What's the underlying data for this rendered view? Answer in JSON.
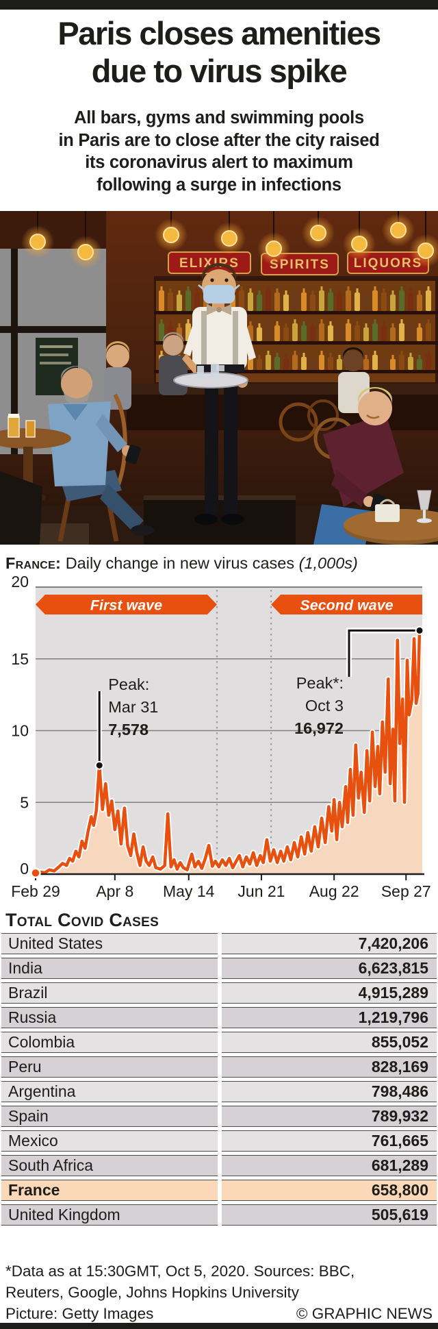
{
  "header": {
    "title_line1": "Paris closes amenities",
    "title_line2": "due to virus spike",
    "subtitle_lines": [
      "All bars, gyms and swimming pools",
      "in Paris are to close after the city raised",
      "its coronavirus alert to maximum",
      "following a surge in infections"
    ]
  },
  "photo": {
    "signs": [
      "ELIXIRS",
      "SPIRITS",
      "LIQUORS"
    ]
  },
  "chart_data": {
    "type": "area",
    "title_prefix": "France:",
    "title_main": " Daily change in new virus cases ",
    "title_note": "(1,000s)",
    "ylim": [
      0,
      20
    ],
    "y_ticks": [
      20,
      15,
      10,
      5,
      0
    ],
    "x_ticks": [
      {
        "label": "Feb 29",
        "pos": 0
      },
      {
        "label": "Apr 8",
        "pos": 20.5
      },
      {
        "label": "May 14",
        "pos": 39.6
      },
      {
        "label": "Jun 21",
        "pos": 58.4
      },
      {
        "label": "Aug 22",
        "pos": 77.2
      },
      {
        "label": "Sep 27",
        "pos": 95.8
      }
    ],
    "wave_bands": [
      {
        "label": "First wave",
        "from": 0,
        "to": 46.9,
        "left_arrow": true,
        "right_arrow": true
      },
      {
        "label": "Second wave",
        "from": 60.9,
        "to": 100,
        "left_arrow": true,
        "right_arrow": false
      }
    ],
    "dividers": [
      46.9,
      60.9
    ],
    "annotations": [
      {
        "label_lines": [
          "Peak:",
          "Mar 31",
          "7,578"
        ],
        "pos": 16.5,
        "value": 7.578,
        "style": "drop-line",
        "align": "left"
      },
      {
        "label_lines": [
          "Peak*:",
          "Oct 3",
          "16,972"
        ],
        "pos": 99.3,
        "value": 16.972,
        "style": "bracket",
        "align": "right"
      }
    ],
    "colors": {
      "line": "#e8500f",
      "fill": "#f7d8bf",
      "plot_bg": "#e0dedf",
      "grid": "#7f7f7f"
    },
    "series": [
      {
        "name": "Daily new cases (1,000s)",
        "points": [
          [
            0,
            0.08
          ],
          [
            1.2,
            0.15
          ],
          [
            2.4,
            0.1
          ],
          [
            3.6,
            0.3
          ],
          [
            4.8,
            0.22
          ],
          [
            6,
            0.5
          ],
          [
            7,
            0.75
          ],
          [
            8,
            0.6
          ],
          [
            8.8,
            1.1
          ],
          [
            9.6,
            0.9
          ],
          [
            10.4,
            1.6
          ],
          [
            11.2,
            1.2
          ],
          [
            12,
            2.3
          ],
          [
            12.8,
            1.8
          ],
          [
            13.6,
            3.0
          ],
          [
            14.4,
            4.0
          ],
          [
            15,
            3.4
          ],
          [
            15.7,
            4.4
          ],
          [
            16.5,
            7.578
          ],
          [
            17.3,
            4.5
          ],
          [
            18.1,
            6.3
          ],
          [
            18.9,
            4.1
          ],
          [
            19.7,
            5.1
          ],
          [
            20.5,
            3.1
          ],
          [
            21.3,
            4.4
          ],
          [
            22.1,
            2.1
          ],
          [
            23,
            4.6
          ],
          [
            23.8,
            2.0
          ],
          [
            24.6,
            1.3
          ],
          [
            25.4,
            2.8
          ],
          [
            26.2,
            1.5
          ],
          [
            27,
            0.6
          ],
          [
            27.8,
            1.9
          ],
          [
            28.6,
            0.9
          ],
          [
            29.4,
            0.6
          ],
          [
            30.3,
            1.2
          ],
          [
            31.1,
            0.45
          ],
          [
            32.3,
            0.35
          ],
          [
            33.4,
            0.6
          ],
          [
            34.2,
            4.2
          ],
          [
            35,
            0.5
          ],
          [
            35.8,
            1.0
          ],
          [
            36.6,
            0.35
          ],
          [
            37.4,
            0.8
          ],
          [
            38.2,
            0.45
          ],
          [
            39.2,
            0.3
          ],
          [
            40.4,
            1.4
          ],
          [
            41.2,
            0.5
          ],
          [
            42.1,
            0.9
          ],
          [
            43,
            0.4
          ],
          [
            43.9,
            1.1
          ],
          [
            44.8,
            2.0
          ],
          [
            45.7,
            0.55
          ],
          [
            46.5,
            0.9
          ],
          [
            47.4,
            0.5
          ],
          [
            48.3,
            1.0
          ],
          [
            49.2,
            0.6
          ],
          [
            50.1,
            1.1
          ],
          [
            51,
            0.45
          ],
          [
            51.9,
            0.9
          ],
          [
            52.7,
            1.3
          ],
          [
            53.6,
            0.5
          ],
          [
            54.5,
            1.2
          ],
          [
            55.4,
            0.7
          ],
          [
            56.3,
            1.5
          ],
          [
            57.2,
            0.6
          ],
          [
            58.1,
            1.3
          ],
          [
            58.9,
            0.8
          ],
          [
            59.8,
            2.4
          ],
          [
            60.7,
            0.9
          ],
          [
            61.6,
            1.7
          ],
          [
            62.5,
            0.8
          ],
          [
            63.4,
            1.6
          ],
          [
            64.2,
            0.9
          ],
          [
            65.1,
            1.9
          ],
          [
            66,
            1.0
          ],
          [
            66.9,
            2.2
          ],
          [
            67.8,
            1.2
          ],
          [
            68.7,
            2.6
          ],
          [
            69.6,
            1.4
          ],
          [
            70.4,
            2.9
          ],
          [
            71.3,
            1.6
          ],
          [
            72.2,
            3.3
          ],
          [
            73.1,
            1.9
          ],
          [
            74,
            3.9
          ],
          [
            74.9,
            2.2
          ],
          [
            75.8,
            4.7
          ],
          [
            76.6,
            3.0
          ],
          [
            77.2,
            5.2
          ],
          [
            77.9,
            2.4
          ],
          [
            78.6,
            5.0
          ],
          [
            79.3,
            3.3
          ],
          [
            80.2,
            6.1
          ],
          [
            80.7,
            3.6
          ],
          [
            81.4,
            7.3
          ],
          [
            82.1,
            4.1
          ],
          [
            82.8,
            9.0
          ],
          [
            83.5,
            5.3
          ],
          [
            84.2,
            7.1
          ],
          [
            85,
            4.3
          ],
          [
            85.7,
            8.6
          ],
          [
            86.4,
            5.1
          ],
          [
            87.1,
            9.9
          ],
          [
            87.8,
            6.1
          ],
          [
            88.5,
            8.9
          ],
          [
            89,
            5.6
          ],
          [
            89.7,
            10.6
          ],
          [
            90.4,
            7.1
          ],
          [
            91.2,
            13.6
          ],
          [
            91.7,
            6.3
          ],
          [
            92.4,
            10.1
          ],
          [
            92.9,
            5.1
          ],
          [
            93.6,
            16.3
          ],
          [
            94.2,
            9.1
          ],
          [
            94.9,
            12.2
          ],
          [
            95.4,
            5.0
          ],
          [
            96.1,
            14.9
          ],
          [
            96.6,
            11.1
          ],
          [
            97.3,
            12.1
          ],
          [
            97.9,
            16.4
          ],
          [
            98.4,
            11.9
          ],
          [
            98.9,
            12.6
          ],
          [
            99.3,
            16.972
          ]
        ]
      }
    ]
  },
  "table": {
    "heading": "Total Covid Cases",
    "rows": [
      {
        "country": "United States",
        "value": "7,420,206",
        "highlight": false
      },
      {
        "country": "India",
        "value": "6,623,815",
        "highlight": false
      },
      {
        "country": "Brazil",
        "value": "4,915,289",
        "highlight": false
      },
      {
        "country": "Russia",
        "value": "1,219,796",
        "highlight": false
      },
      {
        "country": "Colombia",
        "value": "855,052",
        "highlight": false
      },
      {
        "country": "Peru",
        "value": "828,169",
        "highlight": false
      },
      {
        "country": "Argentina",
        "value": "798,486",
        "highlight": false
      },
      {
        "country": "Spain",
        "value": "789,932",
        "highlight": false
      },
      {
        "country": "Mexico",
        "value": "761,665",
        "highlight": false
      },
      {
        "country": "South Africa",
        "value": "681,289",
        "highlight": false
      },
      {
        "country": "France",
        "value": "658,800",
        "highlight": true
      },
      {
        "country": "United Kingdom",
        "value": "505,619",
        "highlight": false
      }
    ]
  },
  "footer": {
    "line1": "*Data as at 15:30GMT, Oct 5, 2020. Sources: BBC,",
    "line2": "Reuters, Google, Johns Hopkins University",
    "line3_left": "Picture: Getty Images",
    "line3_right": "© GRAPHIC NEWS"
  }
}
